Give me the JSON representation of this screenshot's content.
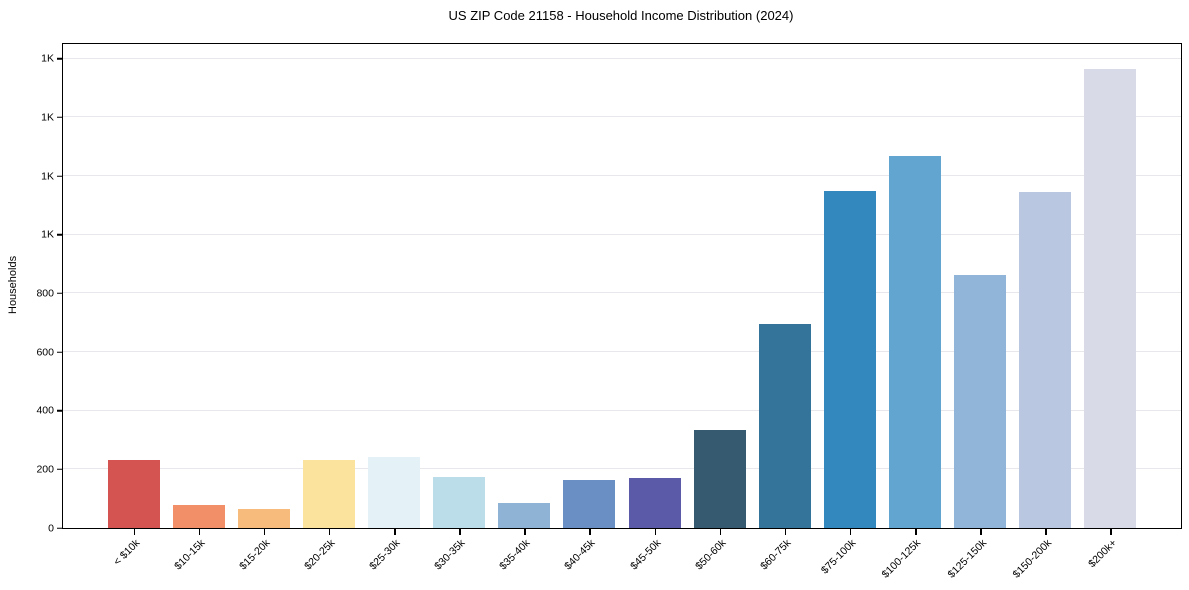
{
  "title": "US ZIP Code 21158 - Household Income Distribution (2024)",
  "colors": {
    "background": "#ffffff",
    "spine": "#000000",
    "grid": "#e8e8ec",
    "text": "#000000"
  },
  "chart_data": {
    "type": "bar",
    "title": "US ZIP Code 21158 - Household Income Distribution (2024)",
    "xlabel": "",
    "ylabel": "Households",
    "ylim": [
      0,
      1650
    ],
    "grid": "horizontal",
    "legend": "none",
    "categories": [
      "< $10k",
      "$10-15k",
      "$15-20k",
      "$20-25k",
      "$25-30k",
      "$30-35k",
      "$35-40k",
      "$40-45k",
      "$45-50k",
      "$50-60k",
      "$60-75k",
      "$75-100k",
      "$100-125k",
      "$125-150k",
      "$150-200k",
      "$200k+"
    ],
    "values": [
      231,
      78,
      64,
      231,
      243,
      174,
      84,
      162,
      170,
      333,
      694,
      1148,
      1268,
      862,
      1146,
      1565
    ],
    "bar_colors": [
      "#d45452",
      "#f28e68",
      "#f7bc7c",
      "#fbe39e",
      "#e4f1f6",
      "#badde9",
      "#8eb3d5",
      "#6a8fc5",
      "#5b5aa9",
      "#365a70",
      "#34749a",
      "#3389bd",
      "#61a5d0",
      "#90b5d8",
      "#b9c8e0",
      "#d9dae8"
    ],
    "yticks": [
      {
        "value": 0,
        "label": "0"
      },
      {
        "value": 200,
        "label": "200"
      },
      {
        "value": 400,
        "label": "400"
      },
      {
        "value": 600,
        "label": "600"
      },
      {
        "value": 800,
        "label": "800"
      },
      {
        "value": 1000,
        "label": "1K"
      },
      {
        "value": 1200,
        "label": "1K"
      },
      {
        "value": 1400,
        "label": "1K"
      },
      {
        "value": 1600,
        "label": "1K"
      }
    ]
  }
}
